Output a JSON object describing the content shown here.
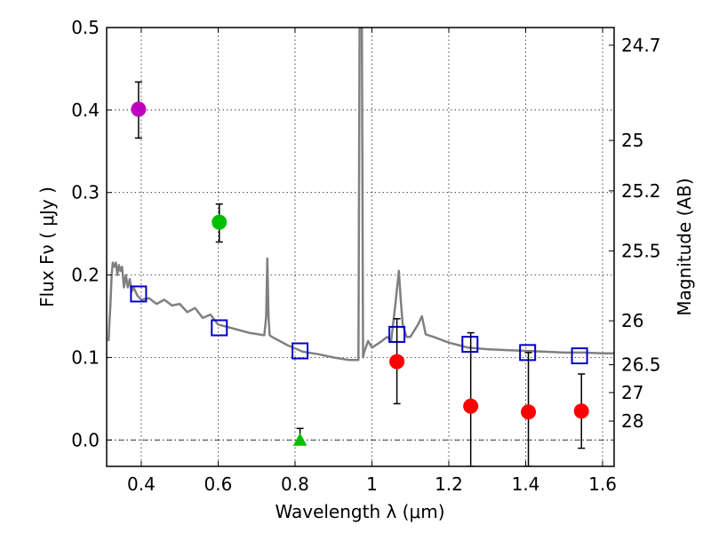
{
  "chart_data": {
    "type": "scatter",
    "xlabel": "Wavelength  λ (μm)",
    "ylabel": "Flux  Fν  ( μJy )",
    "y2label": "Magnitude (AB)",
    "xlim": [
      0.31,
      1.63
    ],
    "ylim": [
      -0.032,
      0.5
    ],
    "grid": true,
    "x_ticks": [
      0.4,
      0.6,
      0.8,
      1.0,
      1.2,
      1.4,
      1.6
    ],
    "x_tick_labels": [
      "0.4",
      "0.6",
      "0.8",
      "1",
      "1.2",
      "1.4",
      "1.6"
    ],
    "y_ticks": [
      0.0,
      0.1,
      0.2,
      0.3,
      0.4,
      0.5
    ],
    "y_tick_labels": [
      "0.0",
      "0.1",
      "0.2",
      "0.3",
      "0.4",
      "0.5"
    ],
    "mag_ticks": [
      {
        "label": "24.7",
        "flux": 0.4786
      },
      {
        "label": "25",
        "flux": 0.3631
      },
      {
        "label": "25.2",
        "flux": 0.302
      },
      {
        "label": "25.5",
        "flux": 0.2291
      },
      {
        "label": "26",
        "flux": 0.1445
      },
      {
        "label": "26.5",
        "flux": 0.0912
      },
      {
        "label": "27",
        "flux": 0.0575
      },
      {
        "label": "28",
        "flux": 0.0229
      }
    ],
    "series": [
      {
        "name": "model spectrum",
        "kind": "line",
        "color": "#808080",
        "x": [
          0.315,
          0.317,
          0.32,
          0.323,
          0.326,
          0.33,
          0.334,
          0.338,
          0.342,
          0.346,
          0.35,
          0.355,
          0.36,
          0.365,
          0.37,
          0.375,
          0.38,
          0.39,
          0.4,
          0.42,
          0.44,
          0.46,
          0.48,
          0.5,
          0.52,
          0.54,
          0.56,
          0.58,
          0.6,
          0.64,
          0.68,
          0.72,
          0.725,
          0.728,
          0.731,
          0.734,
          0.74,
          0.78,
          0.82,
          0.86,
          0.9,
          0.94,
          0.965,
          0.968,
          0.971,
          0.974,
          0.977,
          0.98,
          0.99,
          1.0,
          1.02,
          1.04,
          1.05,
          1.06,
          1.07,
          1.075,
          1.08,
          1.09,
          1.1,
          1.12,
          1.13,
          1.14,
          1.16,
          1.2,
          1.25,
          1.3,
          1.35,
          1.4,
          1.45,
          1.5,
          1.55,
          1.6,
          1.63
        ],
        "y": [
          0.12,
          0.14,
          0.165,
          0.2,
          0.215,
          0.21,
          0.215,
          0.2,
          0.212,
          0.205,
          0.21,
          0.185,
          0.2,
          0.185,
          0.195,
          0.18,
          0.185,
          0.175,
          0.17,
          0.172,
          0.165,
          0.17,
          0.163,
          0.165,
          0.155,
          0.16,
          0.148,
          0.152,
          0.14,
          0.135,
          0.13,
          0.127,
          0.15,
          0.22,
          0.15,
          0.127,
          0.125,
          0.115,
          0.107,
          0.104,
          0.1,
          0.097,
          0.097,
          0.5,
          0.5,
          0.5,
          0.1,
          0.107,
          0.12,
          0.112,
          0.118,
          0.125,
          0.12,
          0.16,
          0.205,
          0.17,
          0.14,
          0.125,
          0.125,
          0.14,
          0.15,
          0.128,
          0.125,
          0.118,
          0.112,
          0.11,
          0.109,
          0.108,
          0.107,
          0.106,
          0.106,
          0.105,
          0.105
        ]
      },
      {
        "name": "model photometry",
        "kind": "open-square",
        "color": "#0000cc",
        "points": [
          {
            "x": 0.393,
            "y": 0.177
          },
          {
            "x": 0.603,
            "y": 0.136
          },
          {
            "x": 0.813,
            "y": 0.108
          },
          {
            "x": 1.065,
            "y": 0.128
          },
          {
            "x": 1.255,
            "y": 0.116
          },
          {
            "x": 1.405,
            "y": 0.106
          },
          {
            "x": 1.54,
            "y": 0.102
          }
        ]
      },
      {
        "name": "observed photometry",
        "kind": "filled-marker",
        "points": [
          {
            "x": 0.393,
            "y": 0.401,
            "yerr_low": 0.366,
            "yerr_high": 0.434,
            "marker": "circle",
            "color": "#bf00bf"
          },
          {
            "x": 0.603,
            "y": 0.264,
            "yerr_low": 0.24,
            "yerr_high": 0.286,
            "marker": "circle",
            "color": "#00bf00"
          },
          {
            "x": 0.813,
            "y": 0.0,
            "yerr_low": 0.0,
            "yerr_high": 0.014,
            "marker": "triangle",
            "color": "#00bf00"
          },
          {
            "x": 1.065,
            "y": 0.095,
            "yerr_low": 0.044,
            "yerr_high": 0.147,
            "marker": "circle",
            "color": "#ff0000"
          },
          {
            "x": 1.257,
            "y": 0.041,
            "yerr_low": -0.032,
            "yerr_high": 0.13,
            "marker": "circle",
            "color": "#ff0000"
          },
          {
            "x": 1.407,
            "y": 0.034,
            "yerr_low": -0.032,
            "yerr_high": 0.106,
            "marker": "circle",
            "color": "#ff0000"
          },
          {
            "x": 1.545,
            "y": 0.035,
            "yerr_low": -0.01,
            "yerr_high": 0.08,
            "marker": "circle",
            "color": "#ff0000"
          }
        ]
      }
    ]
  }
}
